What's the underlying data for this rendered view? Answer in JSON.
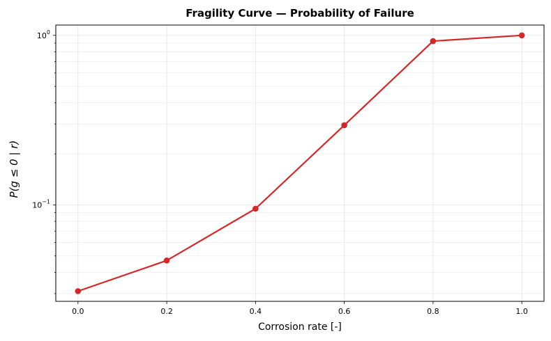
{
  "chart_data": {
    "type": "line",
    "title": "Fragility Curve — Probability of Failure",
    "xlabel": "Corrosion rate [-]",
    "ylabel": "P(g ≤ 0 | r)",
    "x": [
      0.0,
      0.2,
      0.4,
      0.6,
      0.8,
      1.0
    ],
    "series": [
      {
        "values": [
          0.031,
          0.047,
          0.095,
          0.295,
          0.925,
          1.0
        ],
        "color": "#d62728",
        "marker": "circle"
      }
    ],
    "xlim": [
      -0.05,
      1.05
    ],
    "ylim": [
      0.027,
      1.15
    ],
    "yscale": "log",
    "xticks": [
      0.0,
      0.2,
      0.4,
      0.6,
      0.8,
      1.0
    ],
    "xtick_labels": [
      "0.0",
      "0.2",
      "0.4",
      "0.6",
      "0.8",
      "1.0"
    ],
    "yticks": [
      0.1,
      1.0
    ],
    "ytick_labels": [
      {
        "base": "10",
        "exp": "−1"
      },
      {
        "base": "10",
        "exp": "0"
      }
    ],
    "grid": true
  }
}
